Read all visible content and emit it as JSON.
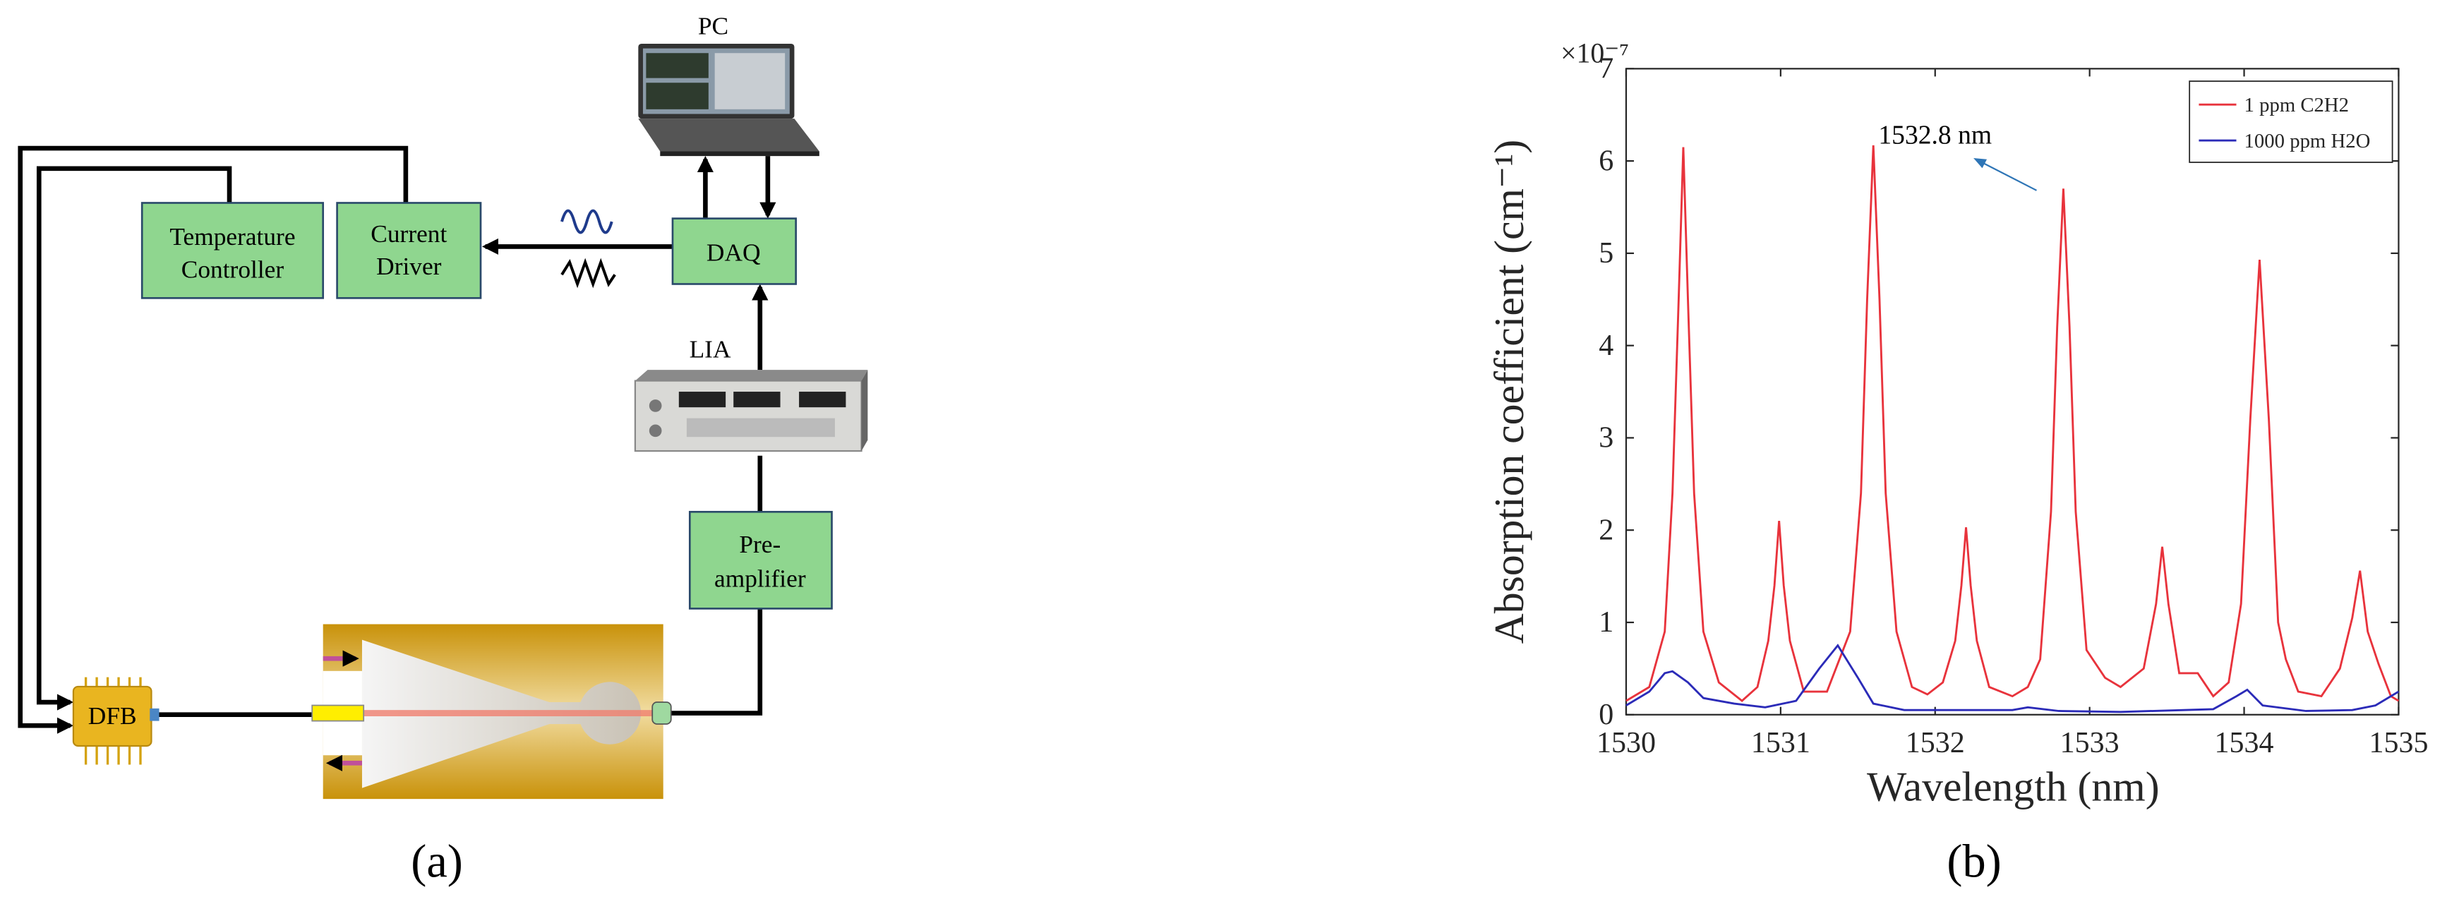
{
  "diagram": {
    "panel_label": "(a)",
    "pc": "PC",
    "daq": "DAQ",
    "lia": "LIA",
    "dfb": "DFB",
    "current_driver": [
      "Current",
      "Driver"
    ],
    "temperature_controller": [
      "Temperature",
      "Controller"
    ],
    "preamplifier": [
      "Pre-",
      "amplifier"
    ]
  },
  "chart_data": {
    "type": "line",
    "panel_label": "(b)",
    "xlabel": "Wavelength (nm)",
    "ylabel": "Absorption coefficient (cm⁻¹)",
    "y_multiplier": "×10⁻⁷",
    "annotation": "1532.8 nm",
    "xlim": [
      1530,
      1535
    ],
    "xticks": [
      1530,
      1531,
      1532,
      1533,
      1534,
      1535
    ],
    "ylim": [
      0,
      7
    ],
    "yticks": [
      0,
      1,
      2,
      3,
      4,
      5,
      6,
      7
    ],
    "grid": false,
    "legend": "top-right",
    "series": [
      {
        "name": "1 ppm C2H2",
        "color": "#e8333c",
        "x": [
          1530.0,
          1530.15,
          1530.25,
          1530.3,
          1530.34,
          1530.37,
          1530.4,
          1530.44,
          1530.5,
          1530.6,
          1530.75,
          1530.85,
          1530.92,
          1530.96,
          1530.99,
          1531.02,
          1531.06,
          1531.15,
          1531.3,
          1531.45,
          1531.52,
          1531.56,
          1531.6,
          1531.64,
          1531.68,
          1531.75,
          1531.85,
          1531.95,
          1532.05,
          1532.13,
          1532.17,
          1532.2,
          1532.23,
          1532.27,
          1532.35,
          1532.5,
          1532.6,
          1532.68,
          1532.75,
          1532.79,
          1532.83,
          1532.87,
          1532.91,
          1532.98,
          1533.1,
          1533.2,
          1533.35,
          1533.43,
          1533.47,
          1533.51,
          1533.58,
          1533.7,
          1533.8,
          1533.9,
          1533.98,
          1534.04,
          1534.1,
          1534.16,
          1534.22,
          1534.27,
          1534.35,
          1534.5,
          1534.62,
          1534.7,
          1534.75,
          1534.8,
          1534.87,
          1534.95,
          1535.0
        ],
        "values": [
          0.15,
          0.3,
          0.9,
          2.4,
          4.5,
          6.15,
          4.5,
          2.4,
          0.9,
          0.35,
          0.15,
          0.3,
          0.8,
          1.4,
          2.1,
          1.4,
          0.8,
          0.25,
          0.25,
          0.9,
          2.4,
          4.5,
          6.17,
          4.5,
          2.4,
          0.9,
          0.3,
          0.22,
          0.35,
          0.8,
          1.4,
          2.03,
          1.4,
          0.8,
          0.3,
          0.2,
          0.3,
          0.6,
          2.2,
          4.2,
          5.7,
          4.2,
          2.2,
          0.7,
          0.4,
          0.3,
          0.5,
          1.2,
          1.82,
          1.2,
          0.45,
          0.45,
          0.2,
          0.35,
          1.2,
          3.2,
          4.93,
          3.2,
          1.0,
          0.6,
          0.25,
          0.2,
          0.5,
          1.05,
          1.56,
          0.9,
          0.55,
          0.2,
          0.15
        ]
      },
      {
        "name": "1000 ppm H2O",
        "color": "#2b2bb8",
        "x": [
          1530.0,
          1530.15,
          1530.25,
          1530.3,
          1530.4,
          1530.5,
          1530.7,
          1530.9,
          1531.1,
          1531.25,
          1531.37,
          1531.5,
          1531.6,
          1531.8,
          1532.0,
          1532.5,
          1532.6,
          1532.8,
          1533.2,
          1533.8,
          1533.95,
          1534.02,
          1534.12,
          1534.4,
          1534.7,
          1534.85,
          1535.0
        ],
        "values": [
          0.1,
          0.25,
          0.45,
          0.47,
          0.35,
          0.18,
          0.12,
          0.08,
          0.15,
          0.5,
          0.75,
          0.4,
          0.12,
          0.05,
          0.05,
          0.05,
          0.08,
          0.04,
          0.03,
          0.06,
          0.2,
          0.27,
          0.1,
          0.04,
          0.05,
          0.1,
          0.25
        ]
      }
    ]
  }
}
